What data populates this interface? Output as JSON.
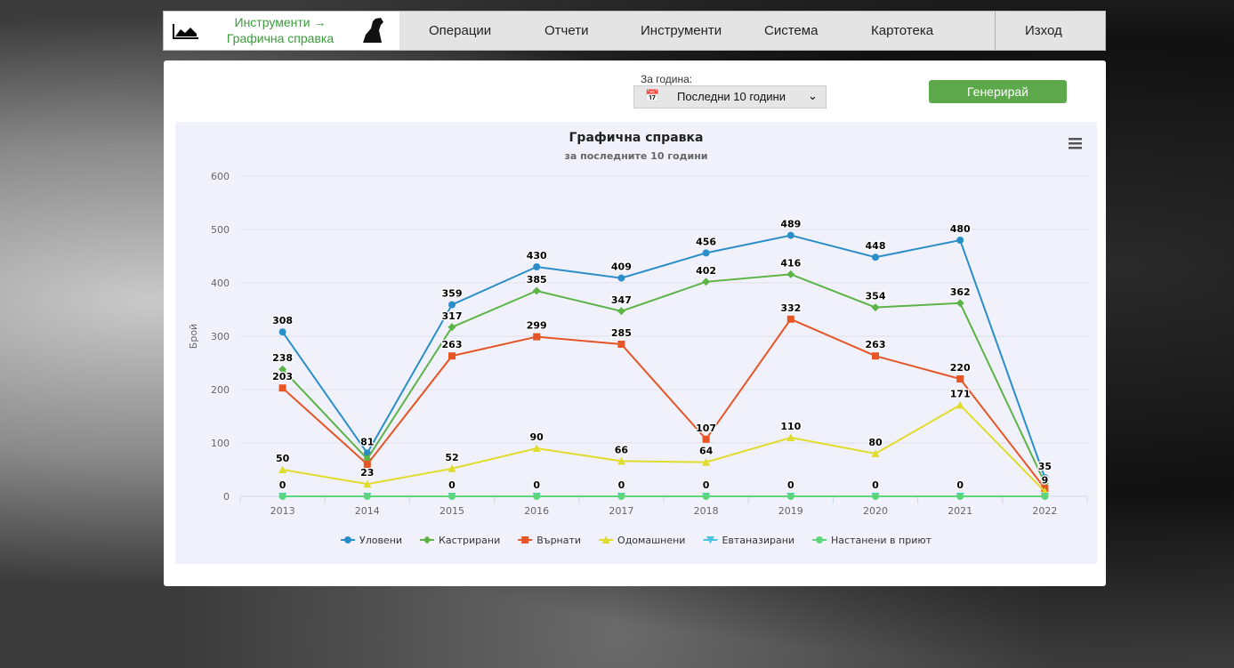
{
  "nav": {
    "breadcrumb": [
      "Инструменти →",
      "Графична справка"
    ],
    "items": [
      "Операции",
      "Отчети",
      "Инструменти",
      "Система",
      "Картотека"
    ],
    "exit": "Изход"
  },
  "form": {
    "label": "За година:",
    "select": "Последни 10 години",
    "button": "Генерирай"
  },
  "chart_data": {
    "type": "line",
    "title": "Графична справка",
    "subtitle": "за последните 10 години",
    "y_label": "Брой",
    "categories": [
      "2013",
      "2014",
      "2015",
      "2016",
      "2017",
      "2018",
      "2019",
      "2020",
      "2021",
      "2022"
    ],
    "ylim": [
      0,
      600
    ],
    "yticks": [
      0,
      100,
      200,
      300,
      400,
      500,
      600
    ],
    "grid": true,
    "legend": "bottom",
    "series": [
      {
        "name": "Уловени",
        "color": "#2a8fc8",
        "marker": "circle",
        "values": [
          308,
          81,
          359,
          430,
          409,
          456,
          489,
          448,
          480,
          35
        ],
        "value_labels": [
          "308",
          "81",
          "359",
          "430",
          "409",
          "456",
          "489",
          "448",
          "480",
          "35"
        ]
      },
      {
        "name": "Кастрирани",
        "color": "#5cb346",
        "marker": "diamond",
        "values": [
          238,
          70,
          317,
          385,
          347,
          402,
          416,
          354,
          362,
          25
        ],
        "value_labels": [
          "238",
          null,
          "317",
          "385",
          "347",
          "402",
          "416",
          "354",
          "362",
          null
        ]
      },
      {
        "name": "Върнати",
        "color": "#e65525",
        "marker": "square",
        "values": [
          203,
          60,
          263,
          299,
          285,
          107,
          332,
          263,
          220,
          15
        ],
        "value_labels": [
          "203",
          null,
          "263",
          "299",
          "285",
          "107",
          "332",
          "263",
          "220",
          null
        ]
      },
      {
        "name": "Одомашнени",
        "color": "#e0dc2b",
        "marker": "triangle",
        "values": [
          50,
          23,
          52,
          90,
          66,
          64,
          110,
          80,
          171,
          9
        ],
        "value_labels": [
          "50",
          "23",
          "52",
          "90",
          "66",
          "64",
          "110",
          "80",
          "171",
          "9"
        ]
      },
      {
        "name": "Евтаназирани",
        "color": "#4cc3e0",
        "marker": "triangle-down",
        "values": [
          0,
          0,
          0,
          0,
          0,
          0,
          0,
          0,
          0,
          0
        ],
        "value_labels": [
          null,
          null,
          null,
          null,
          null,
          null,
          null,
          null,
          null,
          null
        ]
      },
      {
        "name": "Настанени в приют",
        "color": "#5cd67a",
        "marker": "circle",
        "values": [
          0,
          0,
          0,
          0,
          0,
          0,
          0,
          0,
          0,
          0
        ],
        "value_labels": [
          "0",
          null,
          "0",
          "0",
          "0",
          "0",
          "0",
          "0",
          "0",
          null
        ]
      }
    ]
  }
}
